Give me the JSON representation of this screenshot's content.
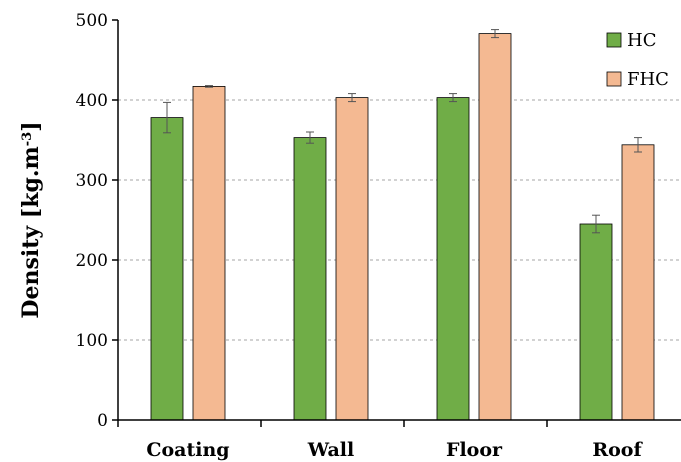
{
  "chart_data": {
    "type": "bar",
    "categories": [
      "Coating",
      "Wall",
      "Floor",
      "Roof"
    ],
    "series": [
      {
        "name": "HC",
        "values": [
          378,
          353,
          403,
          245
        ],
        "errors": [
          19,
          7,
          5,
          11
        ],
        "color": "#70ad47"
      },
      {
        "name": "FHC",
        "values": [
          417,
          403,
          483,
          344
        ],
        "errors": [
          1,
          5,
          5,
          9
        ],
        "color": "#f4b992"
      }
    ],
    "ylabel_main": "Density [kg.m",
    "ylabel_sup": "-3",
    "ylabel_end": "]",
    "ylim": [
      0,
      500
    ],
    "yticks": [
      0,
      100,
      200,
      300,
      400,
      500
    ],
    "grid": true,
    "legend_position": "top-right"
  }
}
